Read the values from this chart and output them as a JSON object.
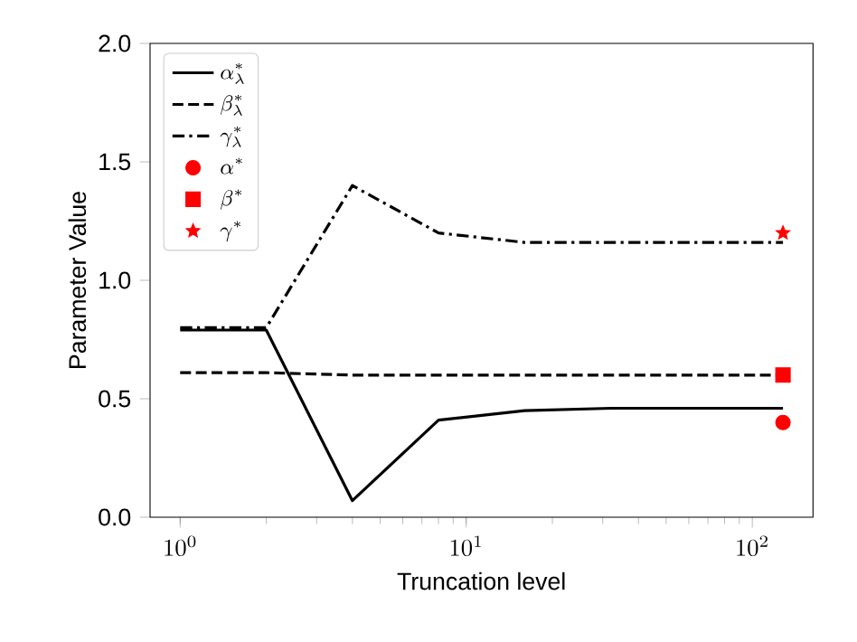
{
  "chart_data": {
    "type": "line",
    "xlabel": "Truncation level",
    "ylabel": "Parameter Value",
    "x": [
      1,
      2,
      4,
      8,
      16,
      32,
      64,
      128
    ],
    "series": [
      {
        "name": "\\alpha^{*}_{\\lambda}",
        "color": "#000000",
        "line_style": "solid",
        "values": [
          0.79,
          0.79,
          0.07,
          0.41,
          0.45,
          0.46,
          0.46,
          0.46
        ]
      },
      {
        "name": "\\beta^{*}_{\\lambda}",
        "color": "#000000",
        "line_style": "dashed",
        "values": [
          0.61,
          0.61,
          0.6,
          0.6,
          0.6,
          0.6,
          0.6,
          0.6
        ]
      },
      {
        "name": "\\gamma^{*}_{\\lambda}",
        "color": "#000000",
        "line_style": "dashdot",
        "values": [
          0.8,
          0.8,
          1.4,
          1.2,
          1.16,
          1.16,
          1.16,
          1.16
        ]
      },
      {
        "name": "\\alpha^{*}",
        "type": "scatter",
        "marker": "circle",
        "color": "#ff0000",
        "values": [
          null,
          null,
          null,
          null,
          null,
          null,
          null,
          0.4
        ]
      },
      {
        "name": "\\beta^{*}",
        "type": "scatter",
        "marker": "square",
        "color": "#ff0000",
        "values": [
          null,
          null,
          null,
          null,
          null,
          null,
          null,
          0.6
        ]
      },
      {
        "name": "\\gamma^{*}",
        "type": "scatter",
        "marker": "star",
        "color": "#ff0000",
        "values": [
          null,
          null,
          null,
          null,
          null,
          null,
          null,
          1.2
        ]
      }
    ],
    "log": "x",
    "xlim": [
      0.785,
      163
    ],
    "ylim": [
      0,
      2.0
    ],
    "xticks": [
      {
        "value": 1,
        "label": "10^{0}"
      },
      {
        "value": 10,
        "label": "10^{1}"
      },
      {
        "value": 100,
        "label": "10^{2}"
      }
    ],
    "yticks": [
      {
        "value": 0,
        "label": "0.0"
      },
      0.5,
      {
        "value": 1,
        "label": "1.0"
      },
      1.5,
      {
        "value": 2,
        "label": "2.0"
      }
    ],
    "legend": "top left",
    "grid": false
  }
}
